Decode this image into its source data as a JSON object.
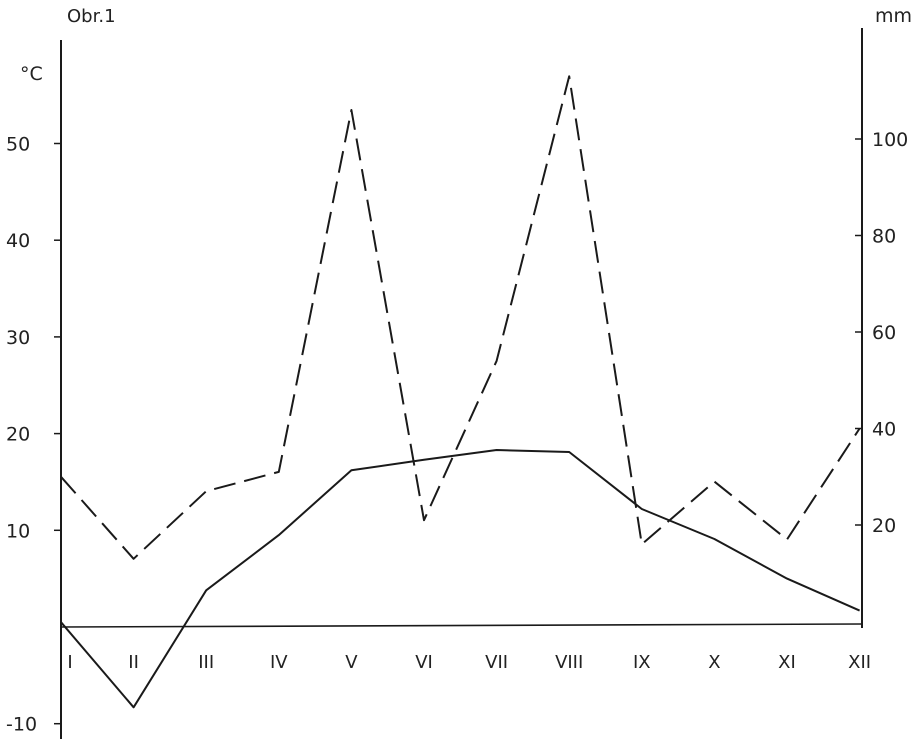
{
  "chart_data": {
    "type": "line",
    "title": "Obr.1",
    "categories": [
      "I",
      "II",
      "III",
      "IV",
      "V",
      "VI",
      "VII",
      "VIII",
      "IX",
      "X",
      "XI",
      "XII"
    ],
    "category_labels": [
      "I",
      "II",
      "III",
      "IV",
      "V",
      "VI",
      "VII",
      "VIII",
      "IX",
      "X",
      "XI",
      "XII"
    ],
    "left_axis": {
      "unit": "°C",
      "ylim": [
        -10,
        62
      ],
      "ticks": [
        -10,
        10,
        20,
        30,
        40,
        50
      ],
      "tick_labels": [
        "-10",
        "10",
        "20",
        "30",
        "40",
        "50"
      ]
    },
    "right_axis": {
      "unit": "mm",
      "ylim": [
        -20,
        124
      ],
      "ticks": [
        20,
        40,
        60,
        80,
        100
      ],
      "tick_labels": [
        "20",
        "40",
        "60",
        "80",
        "100"
      ]
    },
    "series": [
      {
        "axis": "left",
        "style": "solid",
        "color": "#1a1a1a",
        "values": [
          0.5,
          -8.3,
          3.8,
          9.5,
          16.2,
          17.3,
          18.3,
          18.1,
          12.2,
          9.1,
          5.0,
          1.7
        ]
      },
      {
        "axis": "right",
        "style": "dashed",
        "color": "#1a1a1a",
        "values": [
          30,
          13,
          27,
          31,
          106,
          21,
          54,
          113,
          16,
          29,
          17,
          40
        ]
      }
    ],
    "grid": false,
    "legend": "none"
  }
}
